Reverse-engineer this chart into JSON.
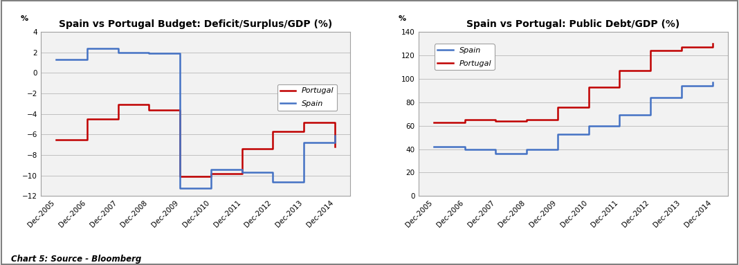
{
  "chart1_title": "Spain vs Portugal Budget: Deficit/Surplus/GDP (%)",
  "chart2_title": "Spain vs Portugal: Public Debt/GDP (%)",
  "x_labels": [
    "Dec-2005",
    "Dec-2006",
    "Dec-2007",
    "Dec-2008",
    "Dec-2009",
    "Dec-2010",
    "Dec-2011",
    "Dec-2012",
    "Dec-2013",
    "Dec-2014"
  ],
  "chart1_portugal_vals": [
    -6.5,
    -4.5,
    -3.1,
    -3.6,
    -10.1,
    -9.8,
    -7.4,
    -5.7,
    -4.8,
    -7.2
  ],
  "chart1_spain_vals": [
    1.3,
    2.4,
    2.0,
    1.9,
    -11.2,
    -9.4,
    -9.7,
    -10.6,
    -6.8,
    -6.1
  ],
  "chart2_spain_vals": [
    42,
    40,
    36,
    40,
    53,
    60,
    69,
    84,
    94,
    97
  ],
  "chart2_portugal_vals": [
    63,
    65,
    64,
    65,
    76,
    93,
    107,
    124,
    127,
    130
  ],
  "spain_color": "#4472C4",
  "portugal_color": "#C00000",
  "chart1_ylim": [
    -12,
    4
  ],
  "chart1_yticks": [
    -12,
    -10,
    -8,
    -6,
    -4,
    -2,
    0,
    2,
    4
  ],
  "chart2_ylim": [
    0,
    140
  ],
  "chart2_yticks": [
    0,
    20,
    40,
    60,
    80,
    100,
    120,
    140
  ],
  "plot_bg_color": "#f2f2f2",
  "fig_bg_color": "#ffffff",
  "caption": "Chart 5: Source - Bloomberg",
  "grid_color": "#c0c0c0",
  "percent_label": "%",
  "border_color": "#a0a0a0",
  "title_fontsize": 10,
  "tick_fontsize": 7.5,
  "legend_fontsize": 8,
  "line_width": 1.8
}
